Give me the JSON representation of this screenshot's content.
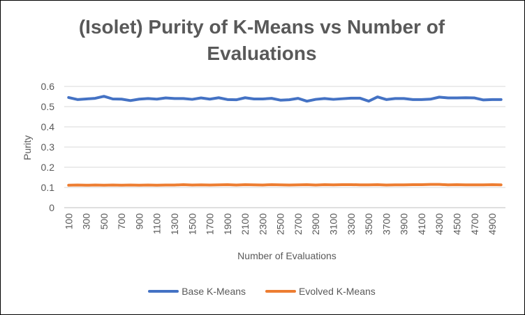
{
  "chart_data": {
    "type": "line",
    "title": "(Isolet) Purity of K-Means vs Number of Evaluations",
    "xlabel": "Number of Evaluations",
    "ylabel": "Purity",
    "ylim": [
      0,
      0.6
    ],
    "yticks": [
      "0",
      "0.1",
      "0.2",
      "0.3",
      "0.4",
      "0.5",
      "0.6"
    ],
    "x": [
      100,
      200,
      300,
      400,
      500,
      600,
      700,
      800,
      900,
      1000,
      1100,
      1200,
      1300,
      1400,
      1500,
      1600,
      1700,
      1800,
      1900,
      2000,
      2100,
      2200,
      2300,
      2400,
      2500,
      2600,
      2700,
      2800,
      2900,
      3000,
      3100,
      3200,
      3300,
      3400,
      3500,
      3600,
      3700,
      3800,
      3900,
      4000,
      4100,
      4200,
      4300,
      4400,
      4500,
      4600,
      4700,
      4800,
      4900,
      5000
    ],
    "xtick_labels": [
      "100",
      "300",
      "500",
      "700",
      "900",
      "1100",
      "1300",
      "1500",
      "1700",
      "1900",
      "2100",
      "2300",
      "2500",
      "2700",
      "2900",
      "3100",
      "3300",
      "3500",
      "3700",
      "3900",
      "4100",
      "4300",
      "4500",
      "4700",
      "4900"
    ],
    "grid": true,
    "legend_position": "bottom",
    "series": [
      {
        "name": "Base K-Means",
        "color": "#4472C4",
        "values": [
          0.545,
          0.535,
          0.538,
          0.541,
          0.551,
          0.538,
          0.537,
          0.53,
          0.537,
          0.54,
          0.537,
          0.543,
          0.54,
          0.54,
          0.536,
          0.543,
          0.537,
          0.544,
          0.535,
          0.534,
          0.544,
          0.538,
          0.538,
          0.541,
          0.532,
          0.534,
          0.541,
          0.527,
          0.536,
          0.54,
          0.536,
          0.539,
          0.542,
          0.542,
          0.527,
          0.548,
          0.535,
          0.54,
          0.54,
          0.535,
          0.535,
          0.537,
          0.547,
          0.543,
          0.543,
          0.544,
          0.543,
          0.533,
          0.535,
          0.535
        ]
      },
      {
        "name": "Evolved K-Means",
        "color": "#ED7D31",
        "values": [
          0.111,
          0.112,
          0.111,
          0.112,
          0.111,
          0.112,
          0.111,
          0.112,
          0.111,
          0.112,
          0.111,
          0.112,
          0.112,
          0.114,
          0.112,
          0.113,
          0.112,
          0.113,
          0.114,
          0.112,
          0.114,
          0.113,
          0.112,
          0.114,
          0.113,
          0.112,
          0.113,
          0.114,
          0.112,
          0.114,
          0.113,
          0.114,
          0.114,
          0.113,
          0.113,
          0.114,
          0.112,
          0.113,
          0.113,
          0.114,
          0.114,
          0.115,
          0.115,
          0.113,
          0.114,
          0.113,
          0.113,
          0.113,
          0.114,
          0.113
        ]
      }
    ]
  }
}
